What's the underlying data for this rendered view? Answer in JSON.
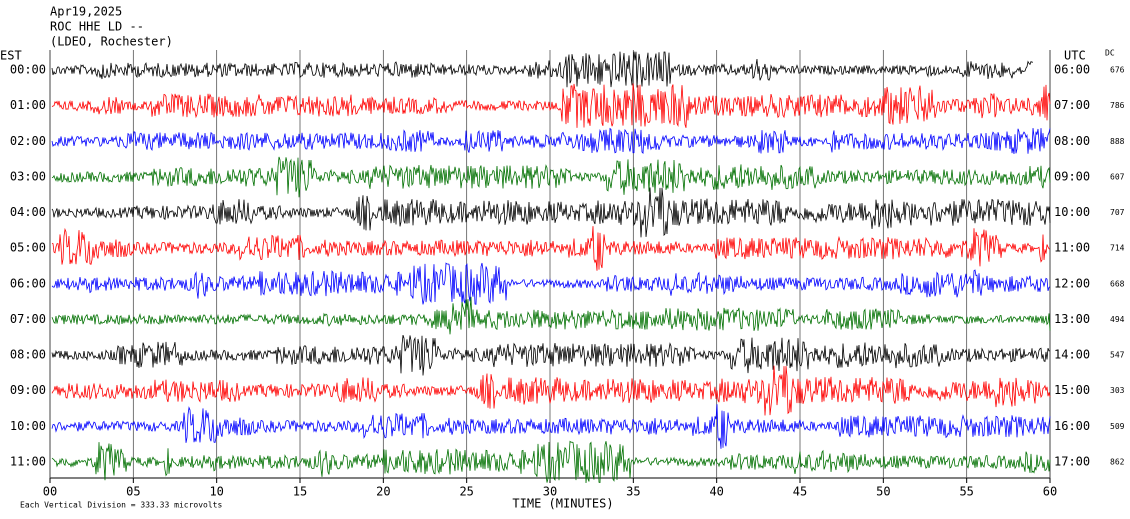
{
  "chart_data": {
    "type": "helicorder",
    "title_lines": [
      "Apr19,2025",
      "ROC HHE LD --",
      "(LDEO, Rochester)"
    ],
    "left_label": "EST",
    "right_label": "UTC",
    "dc_label": "DC",
    "xlabel": "TIME (MINUTES)",
    "footer": "Each Vertical Division =  333.33 microvolts",
    "xlim": [
      0,
      60
    ],
    "xticks": [
      {
        "value": 0,
        "label": "00"
      },
      {
        "value": 5,
        "label": "05"
      },
      10,
      15,
      20,
      25,
      30,
      35,
      40,
      45,
      50,
      55,
      60
    ],
    "grid": true,
    "rows": [
      {
        "est": "00:00",
        "utc": "06:00",
        "dc": 676,
        "color": "#000000"
      },
      {
        "est": "01:00",
        "utc": "07:00",
        "dc": 786,
        "color": "#ff0000"
      },
      {
        "est": "02:00",
        "utc": "08:00",
        "dc": 888,
        "color": "#0000ff"
      },
      {
        "est": "03:00",
        "utc": "09:00",
        "dc": 607,
        "color": "#007000"
      },
      {
        "est": "04:00",
        "utc": "10:00",
        "dc": 707,
        "color": "#000000"
      },
      {
        "est": "05:00",
        "utc": "11:00",
        "dc": 714,
        "color": "#ff0000"
      },
      {
        "est": "06:00",
        "utc": "12:00",
        "dc": 668,
        "color": "#0000ff"
      },
      {
        "est": "07:00",
        "utc": "13:00",
        "dc": 494,
        "color": "#007000"
      },
      {
        "est": "08:00",
        "utc": "14:00",
        "dc": 547,
        "color": "#000000"
      },
      {
        "est": "09:00",
        "utc": "15:00",
        "dc": 303,
        "color": "#ff0000"
      },
      {
        "est": "10:00",
        "utc": "16:00",
        "dc": 509,
        "color": "#0000ff"
      },
      {
        "est": "11:00",
        "utc": "17:00",
        "dc": 862,
        "color": "#007000"
      }
    ]
  }
}
